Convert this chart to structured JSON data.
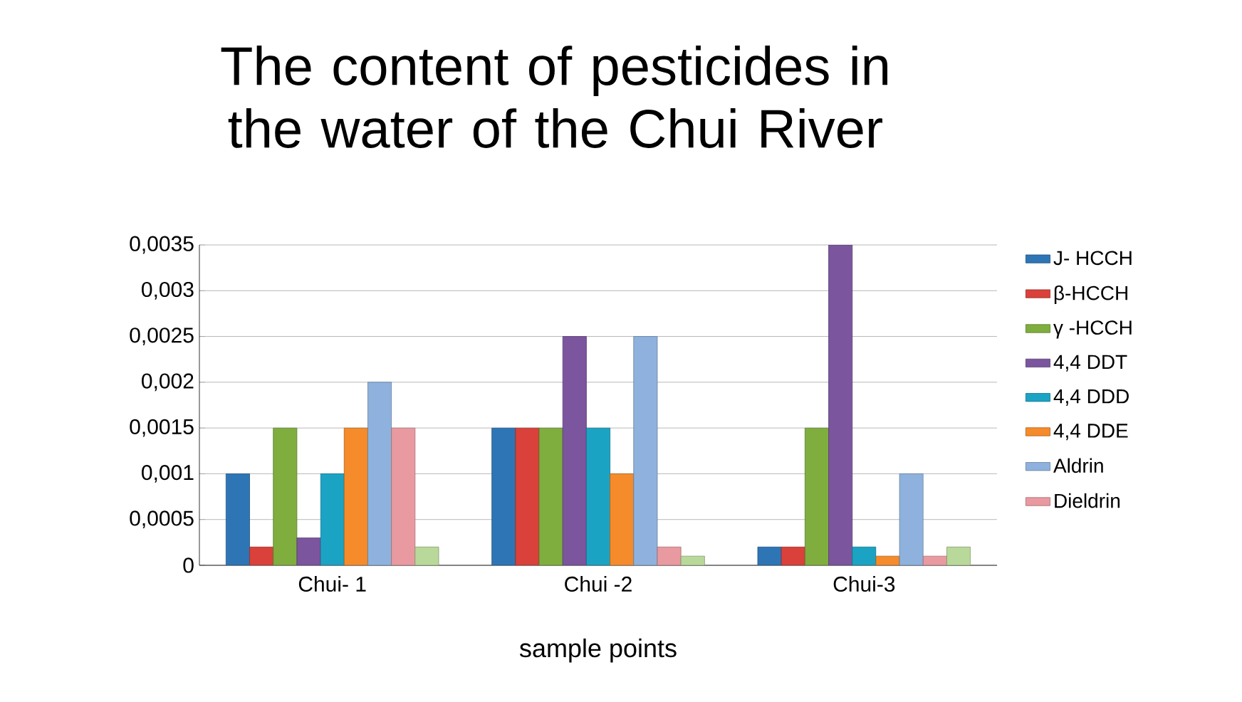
{
  "chart_data": {
    "type": "bar",
    "title": "The content of pesticides in the water of the Chui River",
    "xlabel": "sample points",
    "categories": [
      "Chui- 1",
      "Chui  -2",
      "Chui-3"
    ],
    "series": [
      {
        "name": "J- HCCH",
        "color": "#2e75b6",
        "values": [
          0.001,
          0.0015,
          0.0002
        ]
      },
      {
        "name": "β-HCCH",
        "color": "#d9413a",
        "values": [
          0.0002,
          0.0015,
          0.0002
        ]
      },
      {
        "name": "γ  -HCCH",
        "color": "#7fae3e",
        "values": [
          0.0015,
          0.0015,
          0.0015
        ]
      },
      {
        "name": "4,4 DDT",
        "color": "#7b559d",
        "values": [
          0.0003,
          0.0025,
          0.0035
        ]
      },
      {
        "name": "4,4 DDD",
        "color": "#1ba3c4",
        "values": [
          0.001,
          0.0015,
          0.0002
        ]
      },
      {
        "name": "4,4 DDE",
        "color": "#f58b2b",
        "values": [
          0.0015,
          0.001,
          0.0001
        ]
      },
      {
        "name": "Aldrin",
        "color": "#8eb2dd",
        "values": [
          0.002,
          0.0025,
          0.001
        ]
      },
      {
        "name": "Dieldrin",
        "color": "#e99aa0",
        "values": [
          0.0015,
          0.0002,
          0.0001
        ]
      },
      {
        "color": "#b9d99a",
        "values": [
          0.0002,
          0.0001,
          0.0002
        ]
      }
    ],
    "ylim": [
      0,
      0.0035
    ],
    "yticks": [
      {
        "value": 0,
        "label": "0"
      },
      {
        "value": 0.0005,
        "label": "0,0005"
      },
      {
        "value": 0.001,
        "label": "0,001"
      },
      {
        "value": 0.0015,
        "label": "0,0015"
      },
      {
        "value": 0.002,
        "label": "0,002"
      },
      {
        "value": 0.0025,
        "label": "0,0025"
      },
      {
        "value": 0.003,
        "label": "0,003"
      },
      {
        "value": 0.0035,
        "label": "0,0035"
      }
    ],
    "grid": "y",
    "legend": "right"
  }
}
